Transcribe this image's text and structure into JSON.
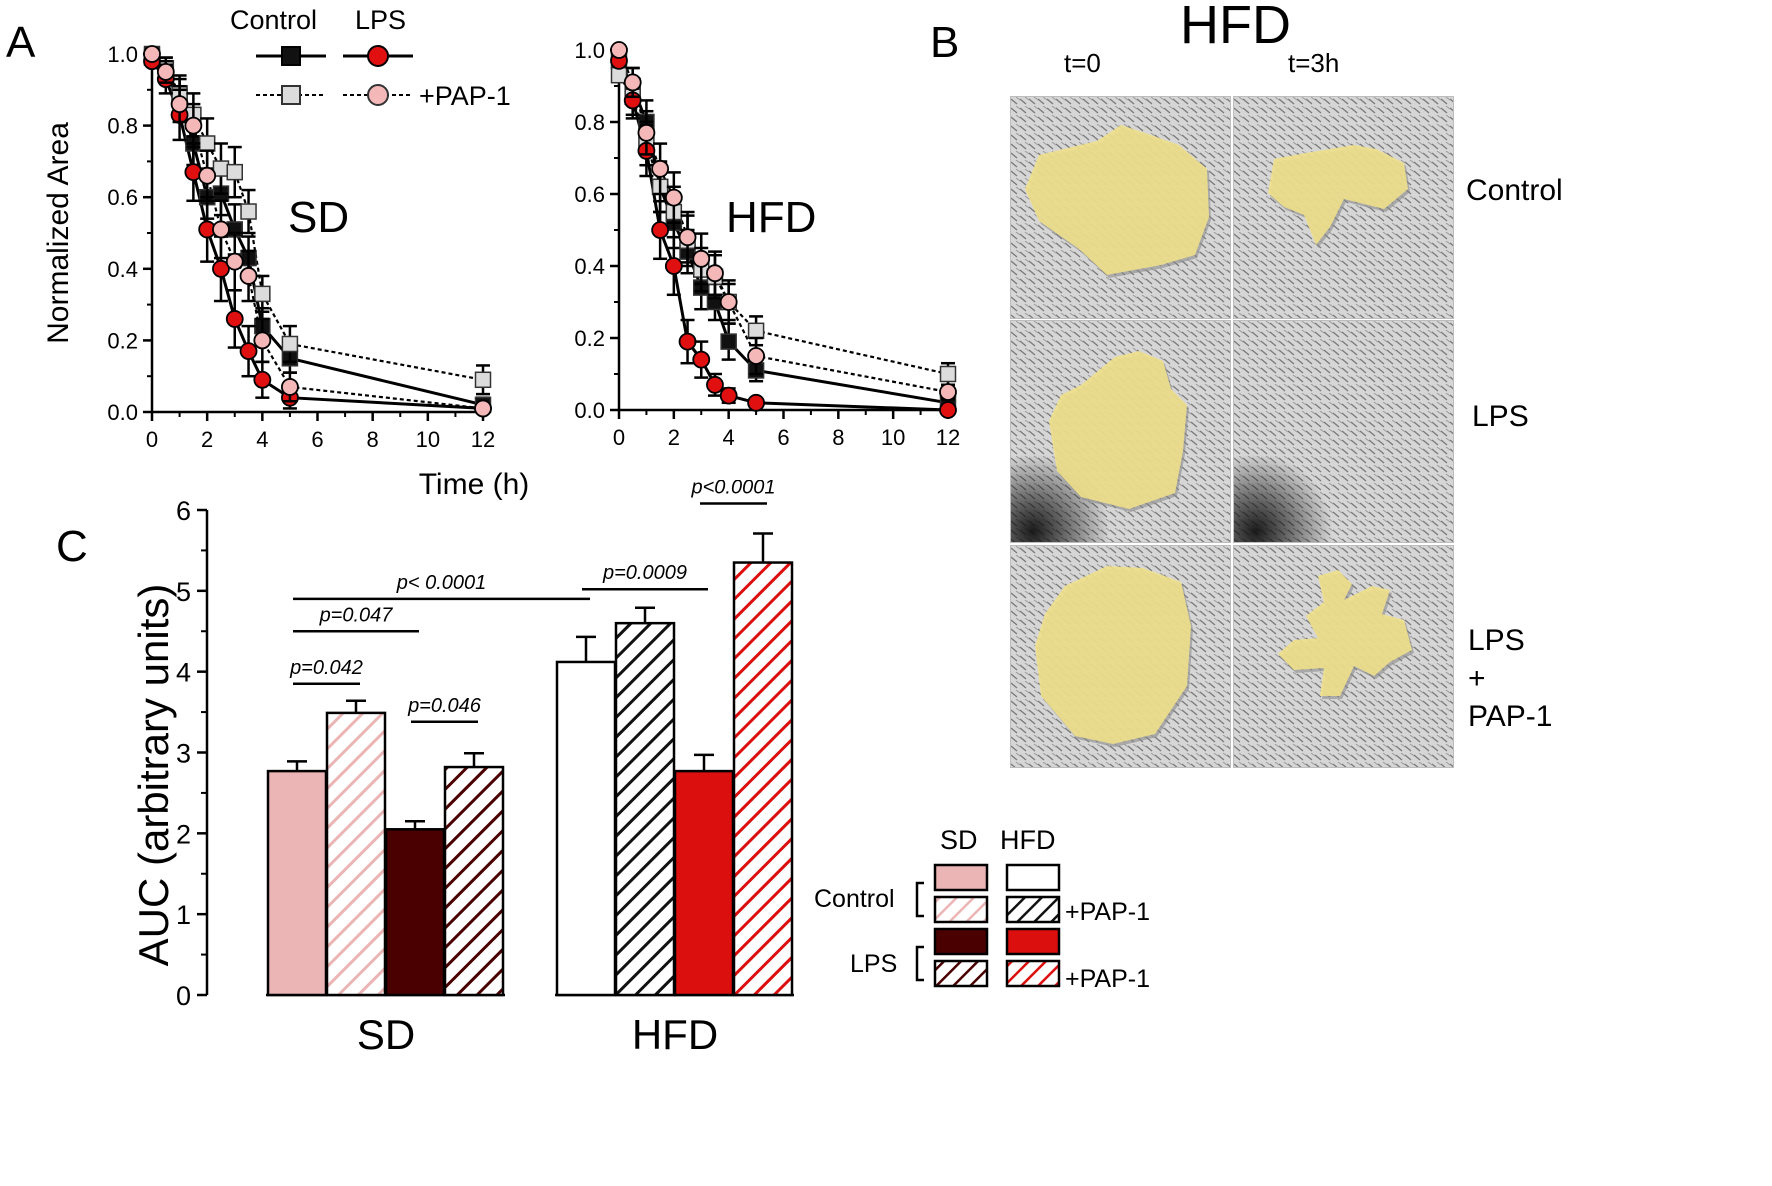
{
  "panel_labels": {
    "a": "A",
    "b": "B",
    "c": "C"
  },
  "colors": {
    "sd_control": "#ebb5b5",
    "sd_lps": "#4a0000",
    "hfd_control": "#ffffff",
    "hfd_lps": "#dc0f0f",
    "lps_marker": "#e01010",
    "lps_pap_marker": "#f4b8b8",
    "control_marker": "#111111",
    "control_pap_marker": "#dcdcdc",
    "wound": "#f0e08a"
  },
  "legend_a": {
    "control": "Control",
    "lps": "LPS",
    "pap": "+PAP-1"
  },
  "legend_c": {
    "sd": "SD",
    "hfd": "HFD",
    "control": "Control",
    "lps": "LPS",
    "pap_1": "+PAP-1",
    "pap_2": "+PAP-1"
  },
  "panel_b": {
    "title": "HFD",
    "cols": [
      "t=0",
      "t=3h"
    ],
    "rows": [
      {
        "text": "Control"
      },
      {
        "text": "LPS"
      },
      {
        "text": "LPS\n+\nPAP-1"
      }
    ]
  },
  "chart_data": [
    {
      "type": "line",
      "panel": "A-SD",
      "title": "SD",
      "xlabel": "Time (h)",
      "ylabel": "Normalized Area",
      "xlim": [
        0,
        12
      ],
      "ylim": [
        0,
        1.0
      ],
      "xticks": [
        "0",
        "2",
        "4",
        "6",
        "8",
        "10",
        "12"
      ],
      "yticks": [
        "0.0",
        "0.2",
        "0.4",
        "0.6",
        "0.8",
        "1.0"
      ],
      "x": [
        0,
        0.5,
        1,
        1.5,
        2,
        2.5,
        3,
        3.5,
        4,
        5,
        12
      ],
      "series": [
        {
          "name": "Control",
          "marker": "square",
          "line": "solid",
          "values": [
            1.0,
            0.96,
            0.88,
            0.75,
            0.6,
            0.61,
            0.51,
            0.43,
            0.24,
            0.15,
            0.02
          ],
          "errors": [
            0,
            0.03,
            0.05,
            0.06,
            0.06,
            0.06,
            0.07,
            0.06,
            0.05,
            0.04,
            0.02
          ]
        },
        {
          "name": "Control +PAP-1",
          "marker": "square",
          "line": "dotted",
          "values": [
            0.99,
            0.96,
            0.89,
            0.83,
            0.75,
            0.68,
            0.67,
            0.56,
            0.33,
            0.19,
            0.09
          ],
          "errors": [
            0,
            0.03,
            0.05,
            0.06,
            0.07,
            0.07,
            0.07,
            0.06,
            0.05,
            0.05,
            0.04
          ]
        },
        {
          "name": "LPS",
          "marker": "circle",
          "line": "solid",
          "values": [
            0.98,
            0.93,
            0.83,
            0.67,
            0.51,
            0.4,
            0.26,
            0.17,
            0.09,
            0.04,
            0.01
          ],
          "errors": [
            0,
            0.04,
            0.07,
            0.08,
            0.09,
            0.09,
            0.08,
            0.07,
            0.05,
            0.03,
            0.01
          ]
        },
        {
          "name": "LPS +PAP-1",
          "marker": "circle",
          "line": "dotted",
          "values": [
            1.0,
            0.95,
            0.86,
            0.8,
            0.66,
            0.51,
            0.42,
            0.38,
            0.2,
            0.07,
            0.01
          ],
          "errors": [
            0,
            0.03,
            0.05,
            0.06,
            0.07,
            0.08,
            0.08,
            0.07,
            0.06,
            0.04,
            0.01
          ]
        }
      ]
    },
    {
      "type": "line",
      "panel": "A-HFD",
      "title": "HFD",
      "xlabel": "",
      "ylabel": "",
      "xlim": [
        0,
        12
      ],
      "ylim": [
        0,
        1.0
      ],
      "xticks": [
        "0",
        "2",
        "4",
        "6",
        "8",
        "10",
        "12"
      ],
      "yticks": [
        "0.0",
        "0.2",
        "0.4",
        "0.6",
        "0.8",
        "1.0"
      ],
      "x": [
        0,
        0.5,
        1,
        1.5,
        2,
        2.5,
        3,
        3.5,
        4,
        5,
        12
      ],
      "series": [
        {
          "name": "Control",
          "marker": "square",
          "line": "solid",
          "values": [
            0.97,
            0.9,
            0.8,
            0.62,
            0.52,
            0.44,
            0.34,
            0.3,
            0.19,
            0.11,
            0.02
          ],
          "errors": [
            0,
            0.05,
            0.06,
            0.07,
            0.07,
            0.06,
            0.06,
            0.05,
            0.05,
            0.03,
            0.02
          ]
        },
        {
          "name": "Control +PAP-1",
          "marker": "square",
          "line": "dotted",
          "values": [
            0.93,
            0.87,
            0.74,
            0.62,
            0.55,
            0.47,
            0.39,
            0.37,
            0.3,
            0.22,
            0.1
          ],
          "errors": [
            0,
            0.05,
            0.06,
            0.07,
            0.07,
            0.07,
            0.06,
            0.06,
            0.05,
            0.04,
            0.03
          ]
        },
        {
          "name": "LPS",
          "marker": "circle",
          "line": "solid",
          "values": [
            0.97,
            0.86,
            0.72,
            0.5,
            0.4,
            0.19,
            0.14,
            0.07,
            0.04,
            0.02,
            0.0
          ],
          "errors": [
            0,
            0.05,
            0.07,
            0.08,
            0.08,
            0.06,
            0.05,
            0.03,
            0.02,
            0.01,
            0.0
          ]
        },
        {
          "name": "LPS +PAP-1",
          "marker": "circle",
          "line": "dotted",
          "values": [
            1.0,
            0.91,
            0.77,
            0.67,
            0.59,
            0.48,
            0.42,
            0.38,
            0.3,
            0.15,
            0.05
          ],
          "errors": [
            0,
            0.04,
            0.06,
            0.07,
            0.07,
            0.07,
            0.07,
            0.06,
            0.06,
            0.05,
            0.02
          ]
        }
      ]
    },
    {
      "type": "bar",
      "panel": "C",
      "xlabel": "",
      "ylabel": "AUC (arbitrary units)",
      "ylim": [
        0,
        6
      ],
      "yticks": [
        "0",
        "1",
        "2",
        "3",
        "4",
        "5",
        "6"
      ],
      "groups": [
        "SD",
        "HFD"
      ],
      "series_names": [
        "Control",
        "Control +PAP-1",
        "LPS",
        "LPS +PAP-1"
      ],
      "values": [
        [
          2.77,
          3.49,
          2.05,
          2.82
        ],
        [
          4.12,
          4.6,
          2.77,
          5.35
        ]
      ],
      "errors": [
        [
          0.12,
          0.15,
          0.1,
          0.17
        ],
        [
          0.31,
          0.19,
          0.2,
          0.36
        ]
      ],
      "significance": [
        {
          "text": "p=0.042",
          "from": [
            0,
            0
          ],
          "to": [
            0,
            1
          ]
        },
        {
          "text": "p=0.047",
          "from": [
            0,
            0
          ],
          "to": [
            0,
            2
          ]
        },
        {
          "text": "p=0.046",
          "from": [
            0,
            2
          ],
          "to": [
            0,
            3
          ]
        },
        {
          "text": "p< 0.0001",
          "from": [
            0,
            0
          ],
          "to": [
            1,
            0
          ]
        },
        {
          "text": "p=0.0009",
          "from": [
            1,
            0
          ],
          "to": [
            1,
            2
          ]
        },
        {
          "text": "p<0.0001",
          "from": [
            1,
            2
          ],
          "to": [
            1,
            3
          ]
        }
      ]
    }
  ]
}
